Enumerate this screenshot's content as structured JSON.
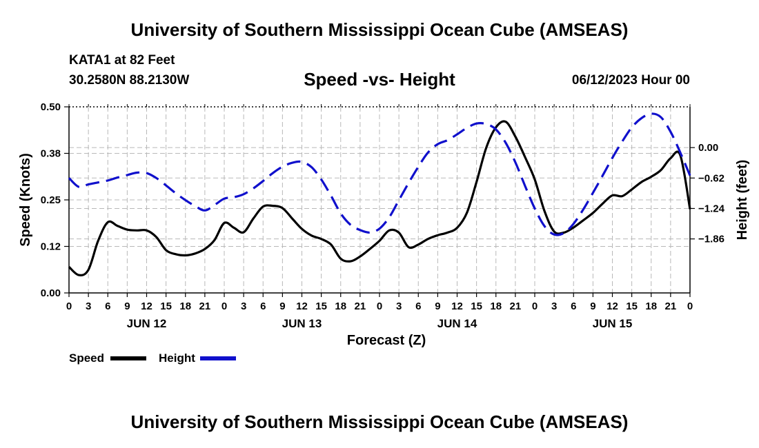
{
  "header": {
    "title": "University of Southern Mississippi Ocean Cube (AMSEAS)",
    "station": "KATA1 at 82 Feet",
    "coordinates": "30.2580N  88.2130W",
    "date": "06/12/2023 Hour 00"
  },
  "footer": {
    "title": "University of Southern Mississippi Ocean Cube (AMSEAS)"
  },
  "chart_data": {
    "type": "line",
    "title": "Speed -vs- Height",
    "xlabel": "Forecast (Z)",
    "ylabel_left": "Speed (Knots)",
    "ylabel_right": "Height (feet)",
    "x_range_hours": [
      0,
      96
    ],
    "x_tick_labels": [
      "0",
      "3",
      "6",
      "9",
      "12",
      "15",
      "18",
      "21",
      "0",
      "3",
      "6",
      "9",
      "12",
      "15",
      "18",
      "21",
      "0",
      "3",
      "6",
      "9",
      "12",
      "15",
      "18",
      "21",
      "0",
      "3",
      "6",
      "9",
      "12",
      "15",
      "18",
      "21",
      "0"
    ],
    "day_labels": [
      {
        "hour": 12,
        "label": "JUN 12"
      },
      {
        "hour": 36,
        "label": "JUN 13"
      },
      {
        "hour": 60,
        "label": "JUN 14"
      },
      {
        "hour": 84,
        "label": "JUN 15"
      }
    ],
    "ylim_left": [
      0,
      0.5
    ],
    "yticks_left": [
      "0.00",
      "0.12",
      "0.25",
      "0.38",
      "0.50"
    ],
    "ylim_right": [
      -2.96,
      0.83
    ],
    "yticks_right": [
      {
        "value": 0.0,
        "label": "0.00"
      },
      {
        "value": -0.62,
        "label": "−0.62"
      },
      {
        "value": -1.24,
        "label": "−1.24"
      },
      {
        "value": -1.86,
        "label": "−1.86"
      }
    ],
    "grid": true,
    "legend": [
      {
        "name": "Speed",
        "color": "#000000",
        "dash": "solid"
      },
      {
        "name": "Height",
        "color": "#1010cc",
        "dash": "dashed"
      }
    ],
    "series": [
      {
        "name": "Speed",
        "axis": "left",
        "color": "#000000",
        "x": [
          0,
          1.5,
          3,
          4.5,
          6,
          7.5,
          9,
          10.5,
          12,
          13.5,
          15,
          16.5,
          18,
          19.5,
          21,
          22.5,
          24,
          25.5,
          27,
          28.5,
          30,
          31.5,
          33,
          34.5,
          36,
          37.5,
          39,
          40.5,
          42,
          43.5,
          45,
          46.5,
          48,
          49.5,
          51,
          52.5,
          54,
          55.5,
          57,
          58.5,
          60,
          61.5,
          63,
          64.5,
          66,
          67.5,
          69,
          70.5,
          72,
          73.5,
          75,
          76.5,
          78,
          79.5,
          81,
          82.5,
          84,
          85.5,
          87,
          88.5,
          90,
          91.5,
          93,
          94.5,
          96
        ],
        "y": [
          0.07,
          0.048,
          0.062,
          0.14,
          0.19,
          0.18,
          0.17,
          0.168,
          0.168,
          0.15,
          0.115,
          0.104,
          0.101,
          0.106,
          0.118,
          0.142,
          0.188,
          0.175,
          0.163,
          0.2,
          0.232,
          0.234,
          0.228,
          0.2,
          0.172,
          0.154,
          0.145,
          0.13,
          0.092,
          0.085,
          0.098,
          0.118,
          0.14,
          0.168,
          0.162,
          0.123,
          0.13,
          0.145,
          0.155,
          0.162,
          0.175,
          0.215,
          0.298,
          0.39,
          0.445,
          0.46,
          0.42,
          0.365,
          0.305,
          0.22,
          0.165,
          0.162,
          0.176,
          0.195,
          0.215,
          0.24,
          0.262,
          0.26,
          0.278,
          0.298,
          0.312,
          0.33,
          0.362,
          0.37,
          0.225
        ]
      },
      {
        "name": "Height",
        "axis": "right",
        "color": "#1010cc",
        "x": [
          0,
          1.5,
          3,
          4.5,
          6,
          7.5,
          9,
          10.5,
          12,
          13.5,
          15,
          16.5,
          18,
          19.5,
          21,
          22.5,
          24,
          25.5,
          27,
          28.5,
          30,
          31.5,
          33,
          34.5,
          36,
          37.5,
          39,
          40.5,
          42,
          43.5,
          45,
          46.5,
          48,
          49.5,
          51,
          52.5,
          54,
          55.5,
          57,
          58.5,
          60,
          61.5,
          63,
          64.5,
          66,
          67.5,
          69,
          70.5,
          72,
          73.5,
          75,
          76.5,
          78,
          79.5,
          81,
          82.5,
          84,
          85.5,
          87,
          88.5,
          90,
          91.5,
          93,
          94.5,
          96
        ],
        "y": [
          -0.62,
          -0.8,
          -0.75,
          -0.71,
          -0.67,
          -0.61,
          -0.56,
          -0.51,
          -0.52,
          -0.62,
          -0.77,
          -0.93,
          -1.07,
          -1.19,
          -1.28,
          -1.17,
          -1.04,
          -1.01,
          -0.95,
          -0.83,
          -0.68,
          -0.52,
          -0.39,
          -0.31,
          -0.29,
          -0.4,
          -0.65,
          -0.98,
          -1.34,
          -1.57,
          -1.68,
          -1.73,
          -1.65,
          -1.42,
          -1.07,
          -0.72,
          -0.39,
          -0.1,
          0.07,
          0.15,
          0.27,
          0.4,
          0.49,
          0.48,
          0.37,
          0.1,
          -0.3,
          -0.78,
          -1.24,
          -1.6,
          -1.77,
          -1.74,
          -1.55,
          -1.26,
          -0.92,
          -0.57,
          -0.21,
          0.12,
          0.41,
          0.6,
          0.69,
          0.62,
          0.32,
          -0.1,
          -0.57
        ]
      }
    ]
  }
}
